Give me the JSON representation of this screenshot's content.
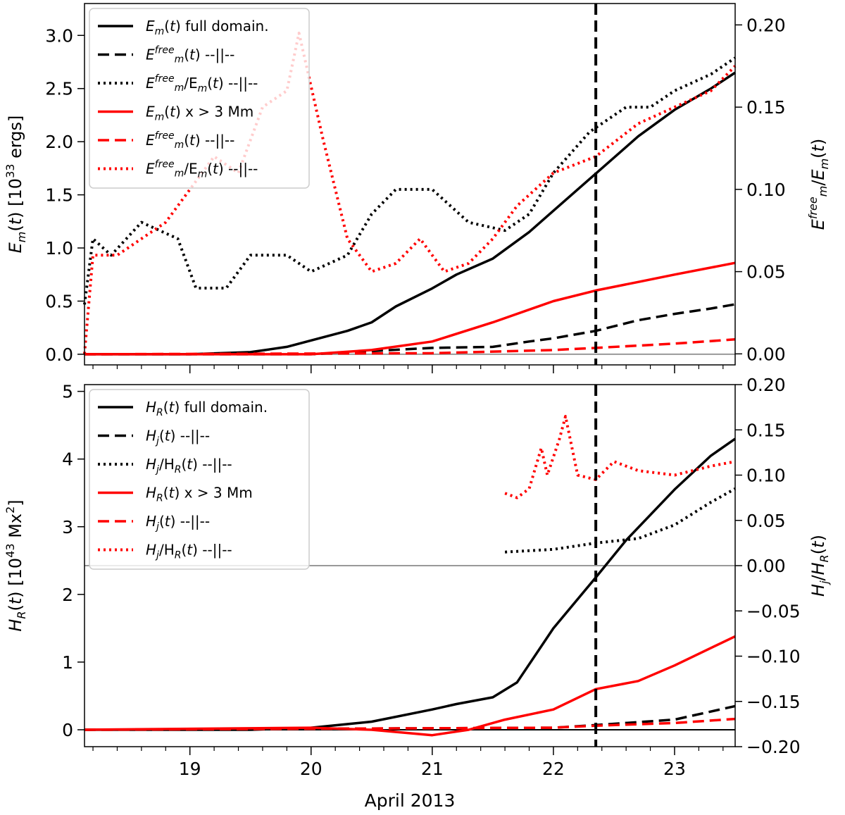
{
  "figure": {
    "xlabel": "April 2013",
    "xtick_labels": [
      "19",
      "20",
      "21",
      "22",
      "23"
    ]
  },
  "colors": {
    "black": "#000000",
    "red": "#ff0000",
    "zero_line": "#999999"
  },
  "chart_data": [
    {
      "type": "line",
      "panel": "top",
      "x_unit": "day of April 2013",
      "xlim": [
        18.13,
        23.5
      ],
      "left_ylabel": "E_m(t) [10^33 ergs]",
      "right_ylabel": "E_m^free / E_m(t)",
      "left_ylim": [
        -0.1,
        3.3
      ],
      "right_ylim": [
        -0.0067,
        0.213
      ],
      "left_yticks": [
        0.0,
        0.5,
        1.0,
        1.5,
        2.0,
        2.5,
        3.0
      ],
      "right_yticks": [
        0.0,
        0.05,
        0.1,
        0.15,
        0.2
      ],
      "zero_line": "gray",
      "vertical_marker_x": 22.35,
      "legend": {
        "placement": "upper-left",
        "entries": [
          {
            "base": "E",
            "sub": "m",
            "sup": "",
            "tail": "(t) full domain.",
            "color": "#000000",
            "dash": "solid"
          },
          {
            "base": "E",
            "sub": "m",
            "sup": "free",
            "tail": "(t) --||--",
            "color": "#000000",
            "dash": "dashed"
          },
          {
            "base": "E",
            "sub": "m",
            "sup": "free",
            "tail": "/E",
            "sub2": "m",
            "tail2": "(t) --||--",
            "color": "#000000",
            "dash": "dotted"
          },
          {
            "base": "E",
            "sub": "m",
            "sup": "",
            "tail": "(t) x > 3 Mm",
            "color": "#ff0000",
            "dash": "solid"
          },
          {
            "base": "E",
            "sub": "m",
            "sup": "free",
            "tail": "(t) --||--",
            "color": "#ff0000",
            "dash": "dashed"
          },
          {
            "base": "E",
            "sub": "m",
            "sup": "free",
            "tail": "/E",
            "sub2": "m",
            "tail2": "(t) --||--",
            "color": "#ff0000",
            "dash": "dotted"
          }
        ]
      },
      "series": [
        {
          "axis": "left",
          "color": "#000000",
          "dash": "solid",
          "x": [
            18.13,
            19.0,
            19.5,
            19.8,
            20.0,
            20.3,
            20.5,
            20.7,
            21.0,
            21.2,
            21.5,
            21.8,
            22.0,
            22.35,
            22.7,
            23.0,
            23.3,
            23.5
          ],
          "y": [
            0.0,
            0.0,
            0.02,
            0.07,
            0.13,
            0.22,
            0.3,
            0.45,
            0.62,
            0.75,
            0.9,
            1.15,
            1.35,
            1.7,
            2.05,
            2.3,
            2.5,
            2.65
          ]
        },
        {
          "axis": "left",
          "color": "#000000",
          "dash": "dashed",
          "x": [
            18.13,
            20.0,
            20.5,
            21.0,
            21.5,
            21.8,
            22.0,
            22.35,
            22.7,
            23.0,
            23.3,
            23.5
          ],
          "y": [
            0.0,
            0.0,
            0.03,
            0.06,
            0.07,
            0.12,
            0.15,
            0.22,
            0.32,
            0.38,
            0.43,
            0.47
          ]
        },
        {
          "axis": "right",
          "color": "#000000",
          "dash": "dotted",
          "x": [
            18.13,
            18.2,
            18.35,
            18.6,
            18.9,
            19.05,
            19.3,
            19.5,
            19.8,
            20.0,
            20.3,
            20.5,
            20.7,
            21.0,
            21.3,
            21.6,
            21.8,
            22.0,
            22.3,
            22.6,
            22.8,
            23.0,
            23.3,
            23.5
          ],
          "y": [
            0.03,
            0.07,
            0.06,
            0.08,
            0.07,
            0.04,
            0.04,
            0.06,
            0.06,
            0.05,
            0.06,
            0.085,
            0.1,
            0.1,
            0.08,
            0.075,
            0.085,
            0.11,
            0.135,
            0.15,
            0.15,
            0.16,
            0.17,
            0.18
          ]
        },
        {
          "axis": "left",
          "color": "#ff0000",
          "dash": "solid",
          "x": [
            18.13,
            20.0,
            20.5,
            21.0,
            21.5,
            22.0,
            22.35,
            22.7,
            23.0,
            23.5
          ],
          "y": [
            0.0,
            0.0,
            0.04,
            0.12,
            0.3,
            0.5,
            0.6,
            0.68,
            0.75,
            0.86
          ]
        },
        {
          "axis": "left",
          "color": "#ff0000",
          "dash": "dashed",
          "x": [
            18.13,
            21.0,
            22.0,
            22.35,
            23.0,
            23.5
          ],
          "y": [
            0.0,
            0.01,
            0.04,
            0.06,
            0.1,
            0.14
          ]
        },
        {
          "axis": "right",
          "color": "#ff0000",
          "dash": "dotted",
          "x": [
            18.13,
            18.2,
            18.4,
            18.6,
            18.8,
            19.0,
            19.2,
            19.4,
            19.6,
            19.8,
            19.9,
            20.1,
            20.3,
            20.5,
            20.7,
            20.9,
            21.1,
            21.3,
            21.5,
            21.7,
            22.0,
            22.35,
            22.7,
            23.0,
            23.3,
            23.5
          ],
          "y": [
            0.0,
            0.06,
            0.06,
            0.07,
            0.08,
            0.1,
            0.12,
            0.11,
            0.15,
            0.16,
            0.195,
            0.13,
            0.07,
            0.05,
            0.055,
            0.07,
            0.05,
            0.055,
            0.07,
            0.09,
            0.11,
            0.12,
            0.14,
            0.15,
            0.16,
            0.175
          ]
        }
      ]
    },
    {
      "type": "line",
      "panel": "bottom",
      "x_unit": "day of April 2013",
      "xlim": [
        18.13,
        23.5
      ],
      "left_ylabel": "H_R(t) [10^43 Mx^2]",
      "right_ylabel": "H_j / H_R(t)",
      "left_ylim": [
        -0.25,
        5.1
      ],
      "right_ylim": [
        -0.2,
        0.2
      ],
      "left_yticks": [
        0,
        1,
        2,
        3,
        4,
        5
      ],
      "right_yticks": [
        -0.2,
        -0.15,
        -0.1,
        -0.05,
        0.0,
        0.05,
        0.1,
        0.15,
        0.2
      ],
      "zero_line": "gray (right-axis zero) and black (left-axis zero)",
      "vertical_marker_x": 22.35,
      "legend": {
        "placement": "upper-left",
        "entries": [
          {
            "base": "H",
            "sub": "R",
            "sup": "",
            "tail": "(t) full domain.",
            "color": "#000000",
            "dash": "solid"
          },
          {
            "base": "H",
            "sub": "j",
            "sup": "",
            "tail": "(t) --||--",
            "color": "#000000",
            "dash": "dashed"
          },
          {
            "base": "H",
            "sub": "j",
            "sup": "",
            "tail": "/H",
            "sub2": "R",
            "tail2": "(t) --||--",
            "color": "#000000",
            "dash": "dotted"
          },
          {
            "base": "H",
            "sub": "R",
            "sup": "",
            "tail": "(t) x > 3 Mm",
            "color": "#ff0000",
            "dash": "solid"
          },
          {
            "base": "H",
            "sub": "j",
            "sup": "",
            "tail": "(t) --||--",
            "color": "#ff0000",
            "dash": "dashed"
          },
          {
            "base": "H",
            "sub": "j",
            "sup": "",
            "tail": "/H",
            "sub2": "R",
            "tail2": "(t) --||--",
            "color": "#ff0000",
            "dash": "dotted"
          }
        ]
      },
      "series": [
        {
          "axis": "left",
          "color": "#000000",
          "dash": "solid",
          "x": [
            18.13,
            19.5,
            20.0,
            20.5,
            21.0,
            21.2,
            21.5,
            21.7,
            22.0,
            22.35,
            22.6,
            23.0,
            23.3,
            23.5
          ],
          "y": [
            0.0,
            0.0,
            0.03,
            0.12,
            0.3,
            0.38,
            0.48,
            0.7,
            1.5,
            2.25,
            2.8,
            3.55,
            4.05,
            4.3
          ]
        },
        {
          "axis": "left",
          "color": "#000000",
          "dash": "dashed",
          "x": [
            18.13,
            22.0,
            22.35,
            23.0,
            23.5
          ],
          "y": [
            0.0,
            0.03,
            0.07,
            0.15,
            0.35
          ]
        },
        {
          "axis": "right",
          "color": "#000000",
          "dash": "dotted",
          "x": [
            21.6,
            22.0,
            22.35,
            22.7,
            23.0,
            23.3,
            23.5
          ],
          "y": [
            0.015,
            0.018,
            0.025,
            0.03,
            0.045,
            0.07,
            0.085
          ]
        },
        {
          "axis": "left",
          "color": "#ff0000",
          "dash": "solid",
          "x": [
            18.13,
            20.0,
            20.5,
            21.0,
            21.3,
            21.6,
            22.0,
            22.35,
            22.7,
            23.0,
            23.5
          ],
          "y": [
            0.0,
            0.03,
            0.0,
            -0.08,
            0.0,
            0.15,
            0.3,
            0.6,
            0.72,
            0.95,
            1.38
          ]
        },
        {
          "axis": "left",
          "color": "#ff0000",
          "dash": "dashed",
          "x": [
            18.13,
            22.0,
            22.35,
            23.0,
            23.5
          ],
          "y": [
            0.0,
            0.03,
            0.06,
            0.1,
            0.16
          ]
        },
        {
          "axis": "right",
          "color": "#ff0000",
          "dash": "dotted",
          "x": [
            21.6,
            21.7,
            21.8,
            21.9,
            21.95,
            22.0,
            22.05,
            22.1,
            22.2,
            22.35,
            22.5,
            22.7,
            23.0,
            23.3,
            23.5
          ],
          "y": [
            0.08,
            0.075,
            0.085,
            0.13,
            0.1,
            0.12,
            0.14,
            0.165,
            0.1,
            0.095,
            0.115,
            0.105,
            0.1,
            0.11,
            0.115
          ]
        }
      ]
    }
  ]
}
